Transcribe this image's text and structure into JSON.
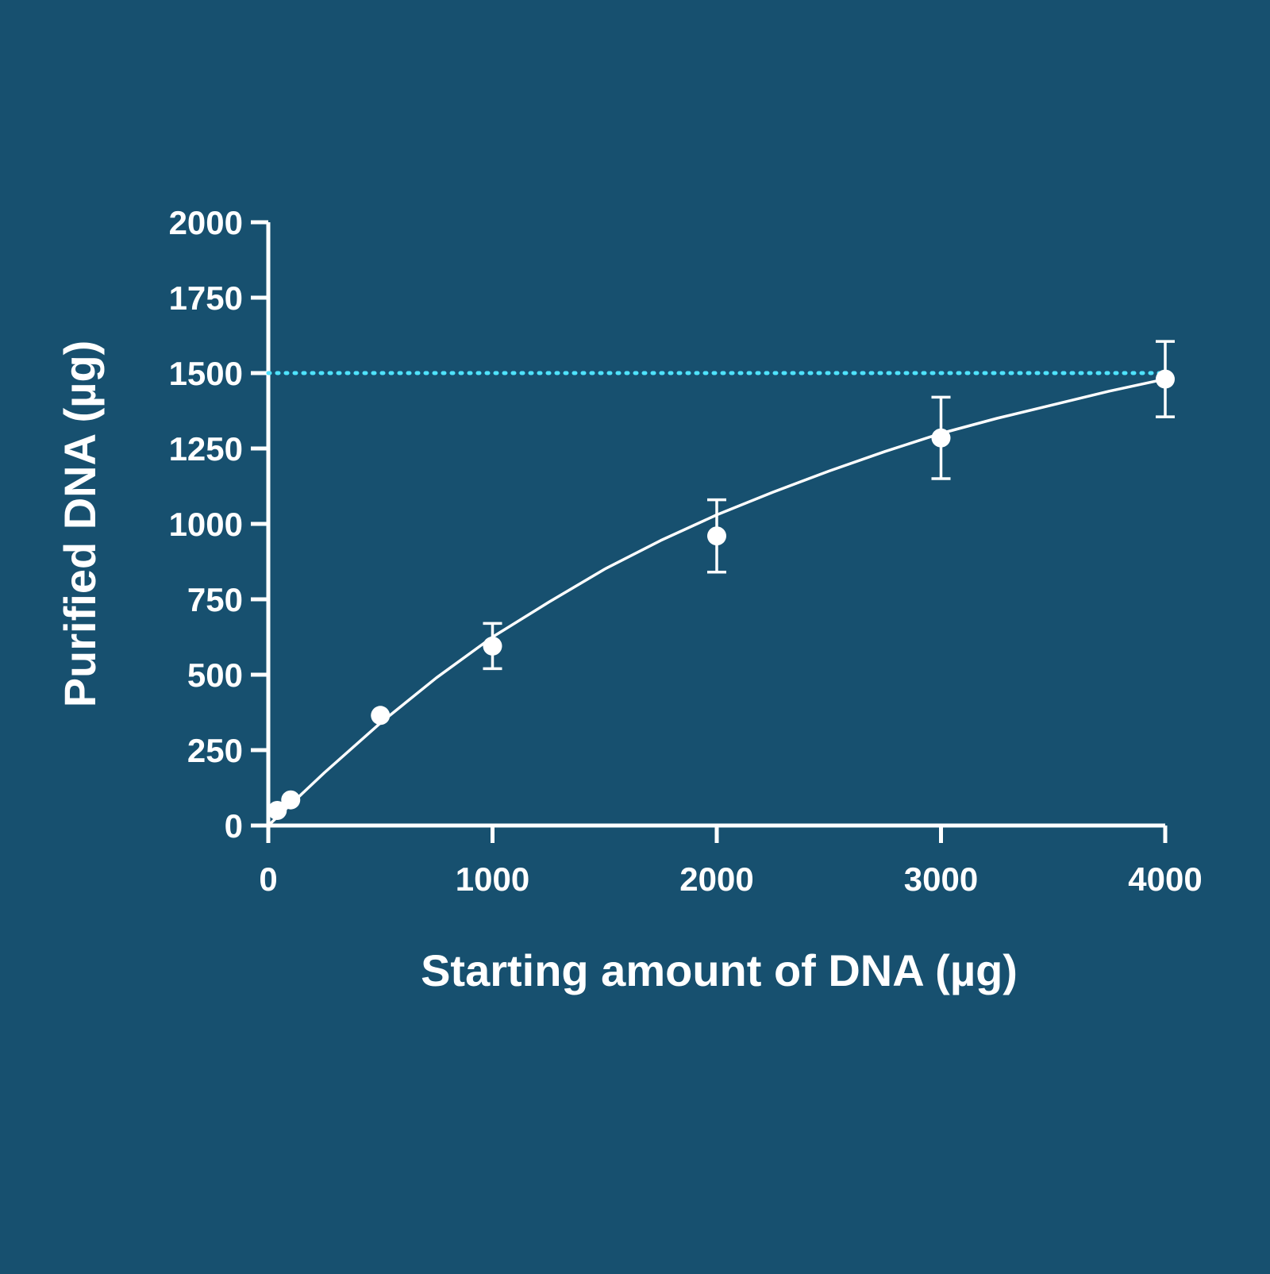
{
  "chart_data": {
    "type": "scatter",
    "title": "",
    "xlabel": "Starting amount of DNA (µg)",
    "ylabel": "Purified DNA (µg)",
    "xlim": [
      0,
      4000
    ],
    "ylim": [
      0,
      2000
    ],
    "x_ticks": [
      "0",
      "1000",
      "2000",
      "3000",
      "4000"
    ],
    "y_ticks": [
      "0",
      "250",
      "500",
      "750",
      "1000",
      "1250",
      "1500",
      "1750",
      "2000"
    ],
    "grid": false,
    "series": [
      {
        "points": [
          {
            "x": 40,
            "y": 50,
            "err": 0
          },
          {
            "x": 100,
            "y": 85,
            "err": 0
          },
          {
            "x": 500,
            "y": 365,
            "err": 0
          },
          {
            "x": 1000,
            "y": 595,
            "err": 75
          },
          {
            "x": 2000,
            "y": 960,
            "err": 120
          },
          {
            "x": 3000,
            "y": 1285,
            "err": 135
          },
          {
            "x": 4000,
            "y": 1480,
            "err": 125
          }
        ],
        "color": "#ffffff"
      }
    ],
    "fit_curve": {
      "x": [
        0,
        250,
        500,
        750,
        1000,
        1250,
        1500,
        1750,
        2000,
        2250,
        2500,
        2750,
        3000,
        3250,
        3500,
        3750,
        4000
      ],
      "y": [
        0,
        175,
        340,
        490,
        625,
        740,
        850,
        945,
        1030,
        1105,
        1175,
        1240,
        1300,
        1350,
        1395,
        1440,
        1480
      ],
      "color": "#ffffff"
    },
    "reference_line": {
      "y": 1500,
      "style": "dotted",
      "color": "#4fe3ff"
    },
    "colors": {
      "background": "#17506f",
      "foreground": "#ffffff"
    }
  }
}
